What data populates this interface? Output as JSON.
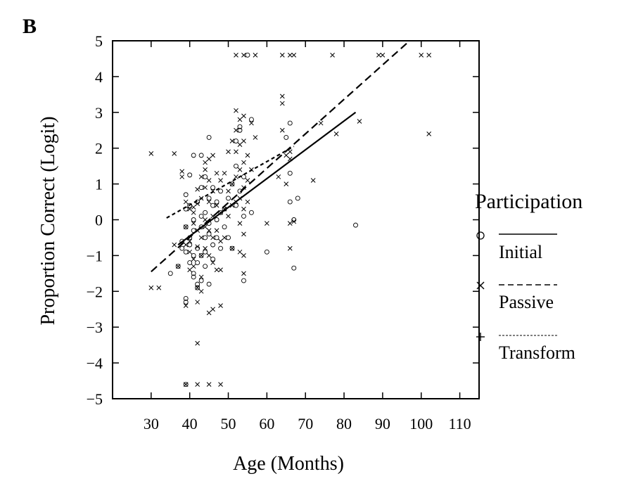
{
  "panel_label": "B",
  "chart_data": {
    "type": "scatter",
    "title": "",
    "xlabel": "Age (Months)",
    "ylabel": "Proportion Correct (Logit)",
    "xlim": [
      20,
      115
    ],
    "ylim": [
      -5,
      5
    ],
    "xticks": [
      30,
      40,
      50,
      60,
      70,
      80,
      90,
      100,
      110
    ],
    "yticks": [
      5,
      4,
      3,
      2,
      1,
      0,
      -1,
      -2,
      -3,
      -4,
      -5
    ],
    "ytick_labels": [
      "5",
      "4",
      "3",
      "2",
      "1",
      "0",
      "−1",
      "−2",
      "−3",
      "−4",
      "−5"
    ],
    "grid": false,
    "legend": {
      "title": "Participation",
      "placement": "right",
      "entries": [
        {
          "label": "Initial",
          "marker": "circle",
          "line": "solid"
        },
        {
          "label": "Passive",
          "marker": "x",
          "line": "dashed"
        },
        {
          "label": "Transform",
          "marker": "plus",
          "line": "dotted"
        }
      ]
    },
    "series": [
      {
        "name": "Initial",
        "marker": "circle",
        "points": [
          [
            35,
            -1.5
          ],
          [
            37,
            -1.3
          ],
          [
            38,
            -0.8
          ],
          [
            38,
            -0.6
          ],
          [
            39,
            -0.2
          ],
          [
            39,
            0.3
          ],
          [
            39,
            0.7
          ],
          [
            39,
            -0.9
          ],
          [
            39,
            -2.2
          ],
          [
            39,
            -2.3
          ],
          [
            39,
            -4.6
          ],
          [
            40,
            -1.2
          ],
          [
            40,
            0.4
          ],
          [
            40,
            -0.5
          ],
          [
            40,
            -0.7
          ],
          [
            40,
            1.25
          ],
          [
            41,
            -1.0
          ],
          [
            41,
            -1.5
          ],
          [
            41,
            0.0
          ],
          [
            41,
            1.8
          ],
          [
            41,
            -0.3
          ],
          [
            41,
            -1.6
          ],
          [
            42,
            0.5
          ],
          [
            42,
            -0.8
          ],
          [
            42,
            -1.2
          ],
          [
            42,
            -1.8
          ],
          [
            42,
            -1.9
          ],
          [
            43,
            0.1
          ],
          [
            43,
            -0.2
          ],
          [
            43,
            -1.0
          ],
          [
            43,
            0.9
          ],
          [
            43,
            1.8
          ],
          [
            43,
            -1.7
          ],
          [
            44,
            -0.5
          ],
          [
            44,
            -0.9
          ],
          [
            44,
            -1.3
          ],
          [
            44,
            1.2
          ],
          [
            44,
            0.2
          ],
          [
            45,
            2.3
          ],
          [
            45,
            -1.8
          ],
          [
            45,
            -0.4
          ],
          [
            45,
            0.6
          ],
          [
            45,
            -0.1
          ],
          [
            46,
            -1.1
          ],
          [
            46,
            0.4
          ],
          [
            46,
            -0.7
          ],
          [
            46,
            0.9
          ],
          [
            47,
            0.0
          ],
          [
            47,
            -0.5
          ],
          [
            47,
            0.5
          ],
          [
            48,
            0.8
          ],
          [
            48,
            -0.8
          ],
          [
            48,
            0.2
          ],
          [
            49,
            0.3
          ],
          [
            49,
            -0.2
          ],
          [
            50,
            0.6
          ],
          [
            50,
            -0.5
          ],
          [
            51,
            1.0
          ],
          [
            51,
            -0.8
          ],
          [
            52,
            1.5
          ],
          [
            52,
            0.4
          ],
          [
            52,
            2.2
          ],
          [
            53,
            2.5
          ],
          [
            53,
            0.8
          ],
          [
            53,
            2.6
          ],
          [
            54,
            -1.7
          ],
          [
            54,
            1.2
          ],
          [
            54,
            0.1
          ],
          [
            55,
            4.6
          ],
          [
            56,
            2.8
          ],
          [
            56,
            0.2
          ],
          [
            60,
            -0.9
          ],
          [
            65,
            2.3
          ],
          [
            66,
            2.7
          ],
          [
            66,
            1.3
          ],
          [
            66,
            0.5
          ],
          [
            67,
            0.0
          ],
          [
            67,
            -1.35
          ],
          [
            68,
            0.6
          ],
          [
            83,
            -0.15
          ]
        ]
      },
      {
        "name": "Passive",
        "marker": "x",
        "points": [
          [
            30,
            1.85
          ],
          [
            30,
            -1.9
          ],
          [
            32,
            -1.9
          ],
          [
            36,
            1.85
          ],
          [
            36,
            -0.7
          ],
          [
            37,
            -1.3
          ],
          [
            38,
            1.35
          ],
          [
            38,
            1.2
          ],
          [
            39,
            0.5
          ],
          [
            39,
            -0.2
          ],
          [
            39,
            -0.7
          ],
          [
            39,
            -2.4
          ],
          [
            39,
            -4.6
          ],
          [
            40,
            0.3
          ],
          [
            40,
            -0.6
          ],
          [
            40,
            -0.9
          ],
          [
            40,
            -1.4
          ],
          [
            41,
            0.2
          ],
          [
            41,
            -0.1
          ],
          [
            41,
            -1.1
          ],
          [
            41,
            -1.3
          ],
          [
            41,
            0.35
          ],
          [
            42,
            0.85
          ],
          [
            42,
            0.45
          ],
          [
            42,
            -0.3
          ],
          [
            42,
            -0.75
          ],
          [
            42,
            -1.9
          ],
          [
            42,
            -2.3
          ],
          [
            42,
            -3.45
          ],
          [
            42,
            -4.6
          ],
          [
            43,
            1.2
          ],
          [
            43,
            0.6
          ],
          [
            43,
            -0.5
          ],
          [
            43,
            -1.0
          ],
          [
            43,
            -1.6
          ],
          [
            43,
            -2.0
          ],
          [
            44,
            1.6
          ],
          [
            44,
            1.4
          ],
          [
            44,
            0.9
          ],
          [
            44,
            0.0
          ],
          [
            44,
            -0.2
          ],
          [
            44,
            -0.8
          ],
          [
            45,
            1.7
          ],
          [
            45,
            1.1
          ],
          [
            45,
            0.5
          ],
          [
            45,
            -0.3
          ],
          [
            45,
            -1.0
          ],
          [
            45,
            -2.6
          ],
          [
            45,
            -4.6
          ],
          [
            46,
            1.8
          ],
          [
            46,
            0.8
          ],
          [
            46,
            0.1
          ],
          [
            46,
            -0.5
          ],
          [
            46,
            -1.2
          ],
          [
            46,
            -2.5
          ],
          [
            47,
            1.3
          ],
          [
            47,
            0.4
          ],
          [
            47,
            -0.3
          ],
          [
            47,
            -1.4
          ],
          [
            48,
            1.1
          ],
          [
            48,
            0.2
          ],
          [
            48,
            -0.6
          ],
          [
            48,
            -1.4
          ],
          [
            48,
            -2.4
          ],
          [
            48,
            -4.6
          ],
          [
            49,
            1.3
          ],
          [
            49,
            0.3
          ],
          [
            49,
            -0.5
          ],
          [
            50,
            1.9
          ],
          [
            50,
            0.8
          ],
          [
            50,
            0.1
          ],
          [
            51,
            2.2
          ],
          [
            51,
            1.0
          ],
          [
            51,
            0.4
          ],
          [
            51,
            -0.8
          ],
          [
            52,
            3.05
          ],
          [
            52,
            2.5
          ],
          [
            52,
            1.9
          ],
          [
            52,
            1.2
          ],
          [
            52,
            0.5
          ],
          [
            52,
            4.6
          ],
          [
            53,
            2.8
          ],
          [
            53,
            2.1
          ],
          [
            53,
            1.4
          ],
          [
            53,
            0.6
          ],
          [
            53,
            -0.1
          ],
          [
            53,
            -0.9
          ],
          [
            54,
            2.9
          ],
          [
            54,
            2.2
          ],
          [
            54,
            1.6
          ],
          [
            54,
            0.9
          ],
          [
            54,
            0.3
          ],
          [
            54,
            -0.4
          ],
          [
            54,
            -1.0
          ],
          [
            54,
            -1.5
          ],
          [
            54,
            4.6
          ],
          [
            55,
            1.8
          ],
          [
            55,
            1.1
          ],
          [
            55,
            0.5
          ],
          [
            56,
            2.7
          ],
          [
            56,
            1.4
          ],
          [
            57,
            4.6
          ],
          [
            57,
            2.3
          ],
          [
            60,
            -0.1
          ],
          [
            63,
            1.2
          ],
          [
            64,
            2.5
          ],
          [
            64,
            3.25
          ],
          [
            64,
            3.45
          ],
          [
            64,
            4.6
          ],
          [
            65,
            1.8
          ],
          [
            65,
            1.0
          ],
          [
            66,
            4.6
          ],
          [
            66,
            1.9
          ],
          [
            66,
            1.7
          ],
          [
            66,
            -0.1
          ],
          [
            66,
            -0.8
          ],
          [
            67,
            4.6
          ],
          [
            67,
            -0.05
          ],
          [
            72,
            1.1
          ],
          [
            74,
            2.7
          ],
          [
            77,
            4.6
          ],
          [
            78,
            2.4
          ],
          [
            84,
            2.75
          ],
          [
            89,
            4.6
          ],
          [
            90,
            4.6
          ],
          [
            100,
            4.6
          ],
          [
            102,
            4.6
          ],
          [
            102,
            2.4
          ]
        ]
      },
      {
        "name": "Transform",
        "marker": "plus",
        "points": []
      }
    ],
    "regression_lines": [
      {
        "name": "Initial",
        "style": "solid",
        "x": [
          37,
          83
        ],
        "y": [
          -0.7,
          3.0
        ]
      },
      {
        "name": "Passive",
        "style": "dashed",
        "x": [
          30,
          97
        ],
        "y": [
          -1.45,
          5.0
        ]
      },
      {
        "name": "Transform",
        "style": "dotted",
        "x": [
          34,
          67
        ],
        "y": [
          0.05,
          2.05
        ]
      }
    ]
  }
}
